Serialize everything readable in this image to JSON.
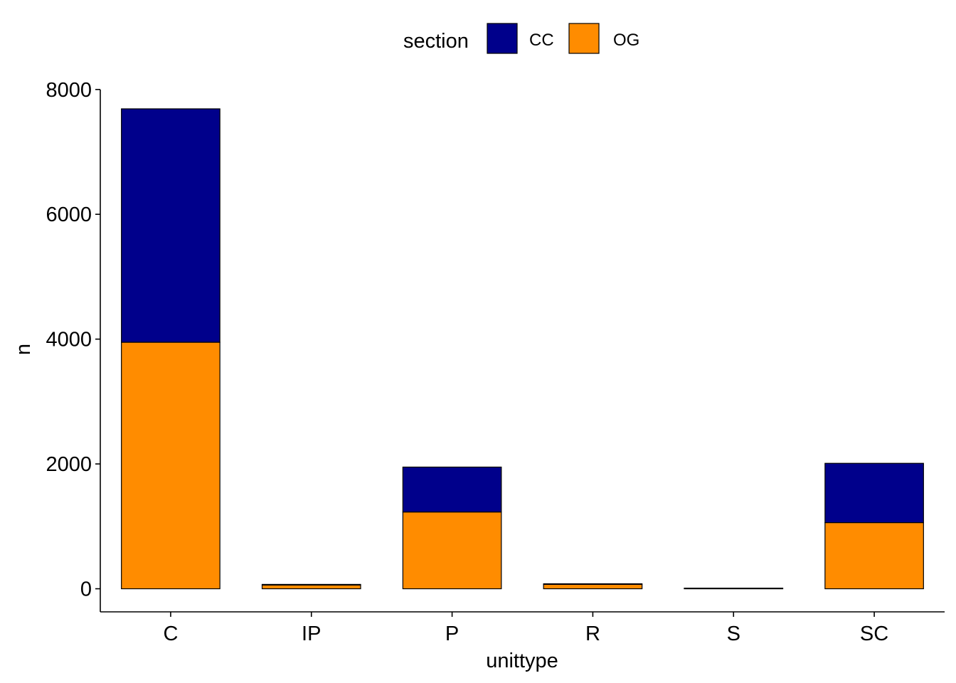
{
  "chart_data": {
    "type": "bar",
    "stacked": true,
    "categories": [
      "C",
      "IP",
      "P",
      "R",
      "S",
      "SC"
    ],
    "series": [
      {
        "name": "OG",
        "color": "#FF8C00",
        "values": [
          3950,
          60,
          1230,
          70,
          5,
          1060
        ]
      },
      {
        "name": "CC",
        "color": "#00008B",
        "values": [
          3740,
          10,
          720,
          10,
          5,
          950
        ]
      }
    ],
    "xlabel": "unittype",
    "ylabel": "n",
    "ylim": [
      -370,
      8100
    ],
    "yticks": [
      0,
      2000,
      4000,
      6000,
      8000
    ],
    "grid": false,
    "legend": {
      "title": "section",
      "position": "top",
      "entries": [
        {
          "label": "CC",
          "color": "#00008B"
        },
        {
          "label": "OG",
          "color": "#FF8C00"
        }
      ]
    }
  }
}
